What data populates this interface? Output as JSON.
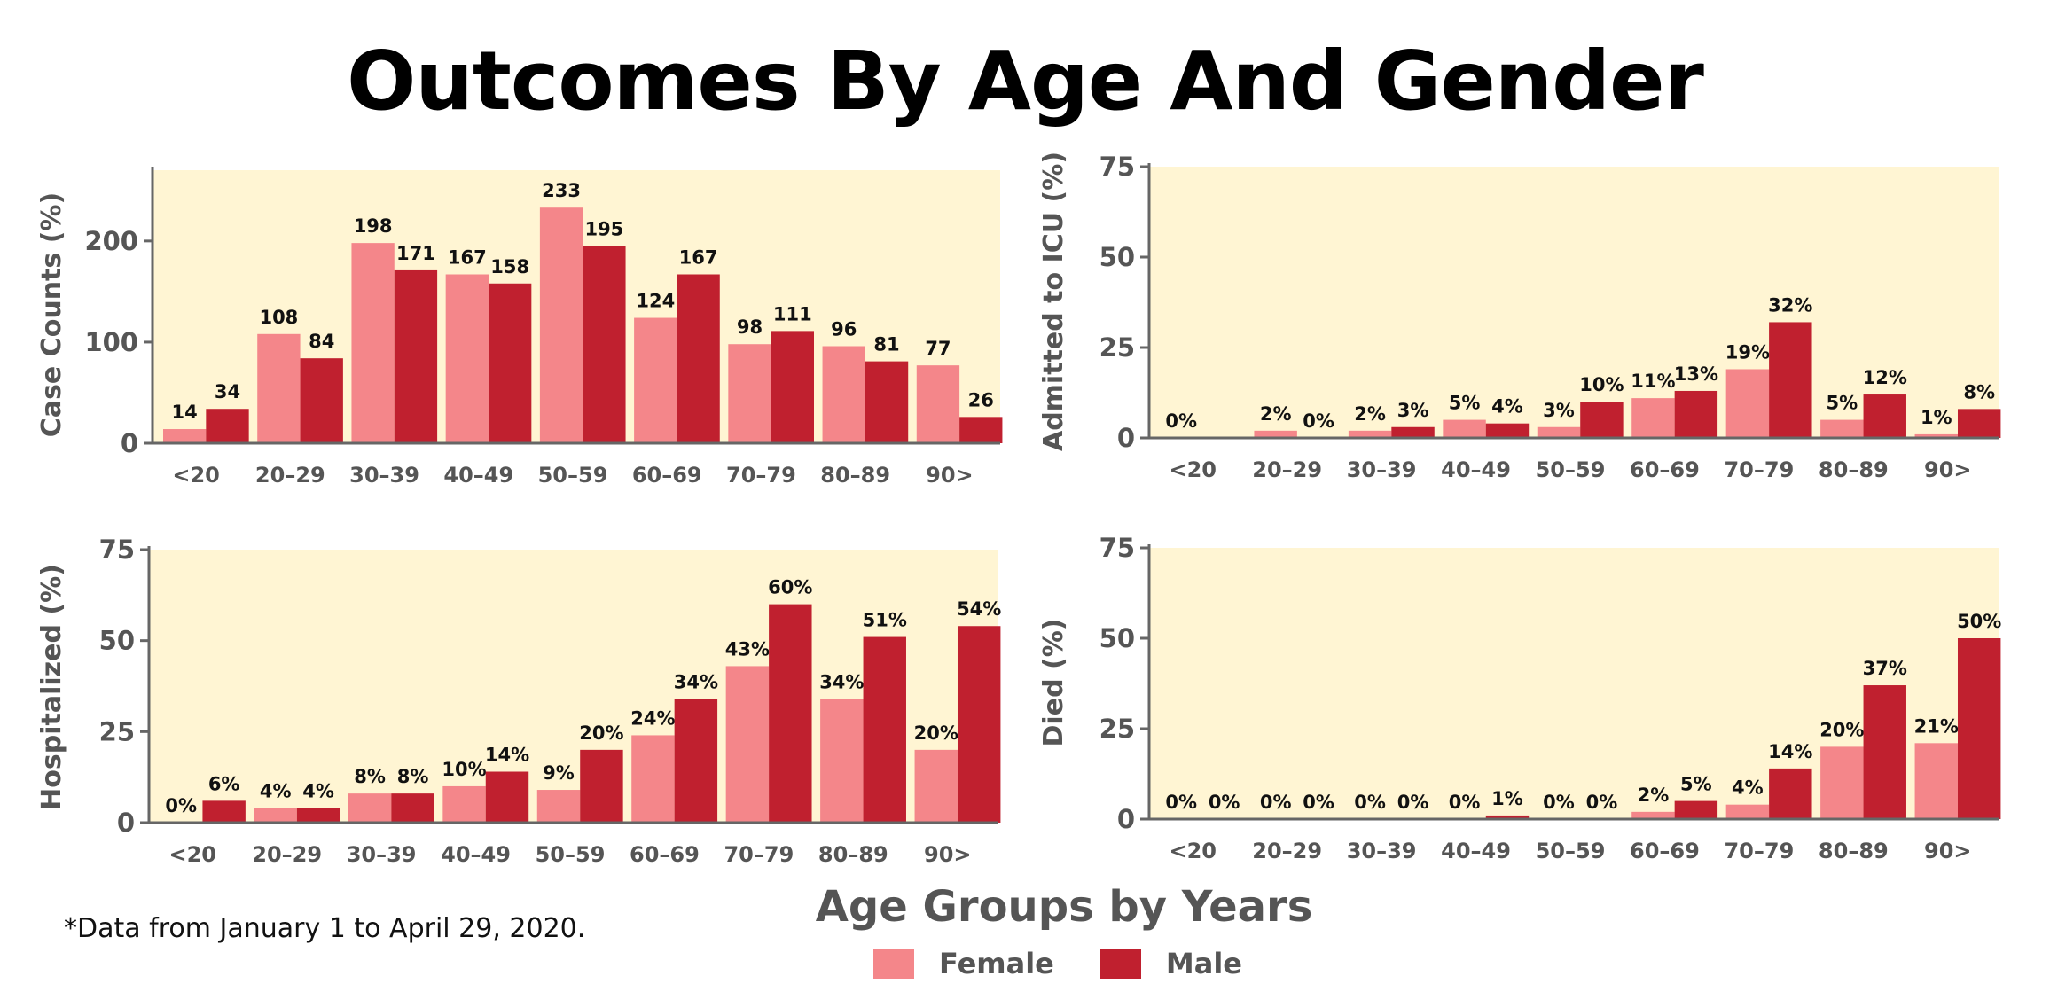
{
  "title": "Outcomes By Age And Gender",
  "footnote": "*Data from January 1 to April 29, 2020.",
  "x_axis_title": "Age Groups by Years",
  "legend": {
    "female": "Female",
    "male": "Male"
  },
  "colors": {
    "female": "#f4868a",
    "male": "#c0202f",
    "plot_bg": "#fff5d3",
    "axis": "#666666"
  },
  "chart_data": [
    {
      "type": "bar",
      "ylabel": "Case Counts (%)",
      "categories": [
        "<20",
        "20–29",
        "30–39",
        "40–49",
        "50–59",
        "60–69",
        "70–79",
        "80–89",
        "90>"
      ],
      "ylim": [
        0,
        270
      ],
      "yticks": [
        0,
        100,
        200
      ],
      "series": [
        {
          "name": "Female",
          "values": [
            14,
            108,
            198,
            167,
            233,
            124,
            98,
            96,
            77
          ],
          "labels": [
            "14",
            "108",
            "198",
            "167",
            "233",
            "124",
            "98",
            "96",
            "77"
          ]
        },
        {
          "name": "Male",
          "values": [
            34,
            84,
            171,
            158,
            195,
            167,
            111,
            81,
            26
          ],
          "labels": [
            "34",
            "84",
            "171",
            "158",
            "195",
            "167",
            "111",
            "81",
            "26"
          ]
        }
      ]
    },
    {
      "type": "bar",
      "ylabel": "Admitted to ICU (%)",
      "categories": [
        "<20",
        "20–29",
        "30–39",
        "40–49",
        "50–59",
        "60–69",
        "70–79",
        "80–89",
        "90>"
      ],
      "ylim": [
        0,
        75
      ],
      "yticks": [
        0,
        25,
        50,
        75
      ],
      "series": [
        {
          "name": "Female",
          "values": [
            0,
            2,
            2,
            5,
            3,
            11,
            19,
            5,
            1
          ],
          "labels": [
            "0%",
            "2%",
            "2%",
            "5%",
            "3%",
            "11%",
            "19%",
            "5%",
            "1%"
          ]
        },
        {
          "name": "Male",
          "values": [
            0,
            0,
            3,
            4,
            10,
            13,
            32,
            12,
            8
          ],
          "labels": [
            "",
            "0%",
            "3%",
            "4%",
            "10%",
            "13%",
            "32%",
            "12%",
            "8%"
          ]
        }
      ]
    },
    {
      "type": "bar",
      "ylabel": "Hospitalized (%)",
      "categories": [
        "<20",
        "20–29",
        "30–39",
        "40–49",
        "50–59",
        "60–69",
        "70–79",
        "80–89",
        "90>"
      ],
      "ylim": [
        0,
        75
      ],
      "yticks": [
        0,
        25,
        50,
        75
      ],
      "series": [
        {
          "name": "Female",
          "values": [
            0,
            4,
            8,
            10,
            9,
            24,
            43,
            34,
            20
          ],
          "labels": [
            "0%",
            "4%",
            "8%",
            "10%",
            "9%",
            "24%",
            "43%",
            "34%",
            "20%"
          ]
        },
        {
          "name": "Male",
          "values": [
            6,
            4,
            8,
            14,
            20,
            34,
            60,
            51,
            54
          ],
          "labels": [
            "6%",
            "4%",
            "8%",
            "14%",
            "20%",
            "34%",
            "60%",
            "51%",
            "54%"
          ]
        }
      ]
    },
    {
      "type": "bar",
      "ylabel": "Died (%)",
      "categories": [
        "<20",
        "20–29",
        "30–39",
        "40–49",
        "50–59",
        "60–69",
        "70–79",
        "80–89",
        "90>"
      ],
      "ylim": [
        0,
        75
      ],
      "yticks": [
        0,
        25,
        50,
        75
      ],
      "series": [
        {
          "name": "Female",
          "values": [
            0,
            0,
            0,
            0,
            0,
            2,
            4,
            20,
            21
          ],
          "labels": [
            "0%",
            "0%",
            "0%",
            "0%",
            "0%",
            "2%",
            "4%",
            "20%",
            "21%"
          ]
        },
        {
          "name": "Male",
          "values": [
            0,
            0,
            0,
            1,
            0,
            5,
            14,
            37,
            50
          ],
          "labels": [
            "0%",
            "0%",
            "0%",
            "1%",
            "0%",
            "5%",
            "14%",
            "37%",
            "50%"
          ]
        }
      ]
    }
  ]
}
